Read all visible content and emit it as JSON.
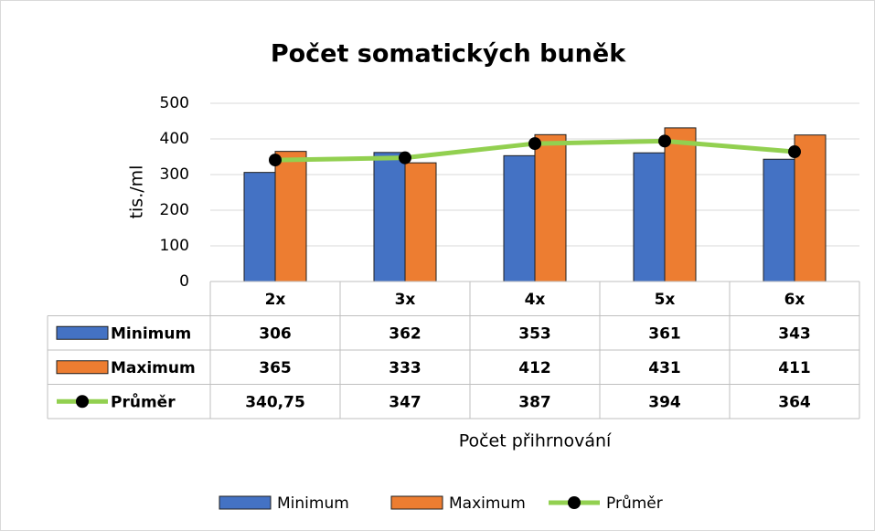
{
  "chart_data": {
    "type": "bar",
    "title": "Počet somatických buněk",
    "y_label": "tis./ml",
    "x_label": "Počet přihrnování",
    "categories": [
      "2x",
      "3x",
      "4x",
      "5x",
      "6x"
    ],
    "series": [
      {
        "name": "Minimum",
        "color": "#4472c4",
        "type": "bar",
        "values": [
          306,
          362,
          353,
          361,
          343
        ]
      },
      {
        "name": "Maximum",
        "color": "#ed7d31",
        "type": "bar",
        "values": [
          365,
          333,
          412,
          431,
          411
        ]
      },
      {
        "name": "Průměr",
        "color": "#92d050",
        "marker_color": "#000000",
        "type": "line",
        "values": [
          340.75,
          347,
          387,
          394,
          364
        ],
        "value_labels": [
          "340,75",
          "347",
          "387",
          "394",
          "364"
        ]
      }
    ],
    "ylim": [
      0,
      500
    ],
    "yticks": [
      0,
      100,
      200,
      300,
      400,
      500
    ],
    "grid": true,
    "data_table": true,
    "legend": "bottom"
  }
}
